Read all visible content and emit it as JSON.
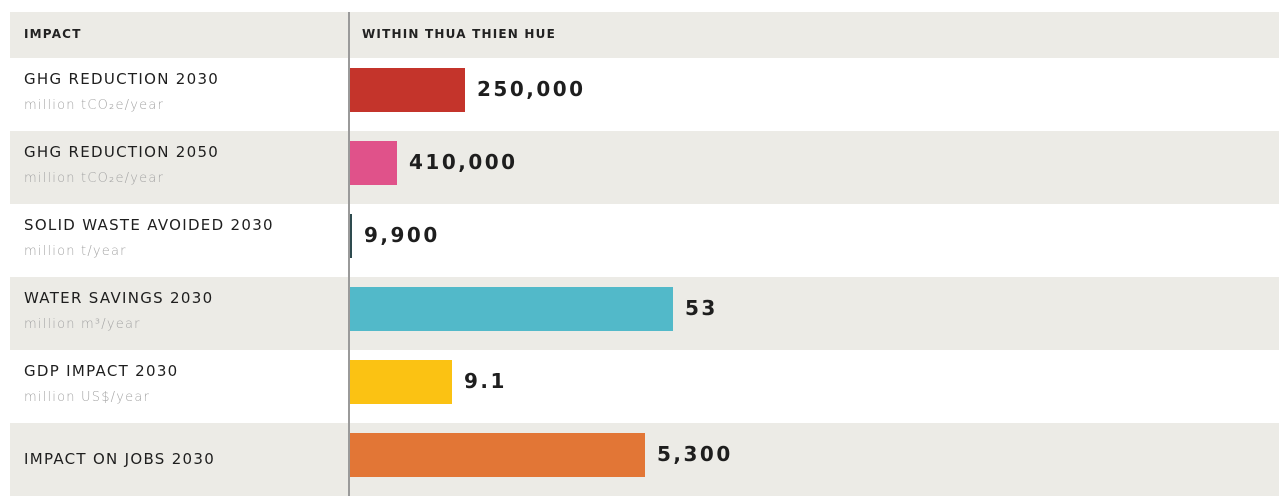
{
  "table": {
    "headers": [
      "IMPACT",
      "WITHIN THUA THIEN HUE"
    ],
    "rows": [
      {
        "label": "GHG REDUCTION 2030",
        "unit": "million tCO₂e/year",
        "value": "250,000",
        "color": "#c4342b"
      },
      {
        "label": "GHG REDUCTION 2050",
        "unit": "million tCO₂e/year",
        "value": "410,000",
        "color": "#e0528a"
      },
      {
        "label": "SOLID WASTE AVOIDED 2030",
        "unit": "million t/year",
        "value": "9,900",
        "color": "#2e4b4f"
      },
      {
        "label": "WATER SAVINGS 2030",
        "unit": "million m³/year",
        "value": "53",
        "color": "#52b9c9"
      },
      {
        "label": "GDP IMPACT 2030",
        "unit": "million US$/year",
        "value": "9.1",
        "color": "#fbc213"
      },
      {
        "label": "IMPACT ON JOBS 2030",
        "value": "5,300",
        "color": "#e27636"
      }
    ]
  }
}
